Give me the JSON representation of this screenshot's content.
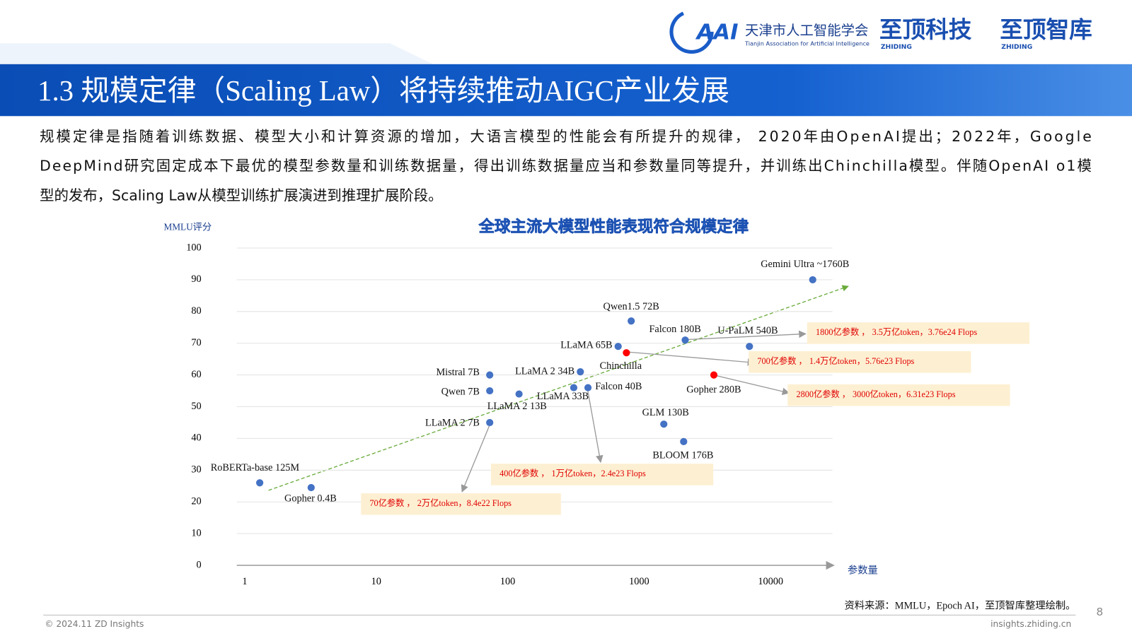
{
  "header": {
    "org_name": "天津市人工智能学会",
    "org_name_en": "Tianjin Association for Artificial Intelligence",
    "brand1": "至顶科技",
    "brand1_en": "ZHIDING",
    "brand2": "至顶智库",
    "brand2_en": "ZHIDING"
  },
  "slide_title": "1.3 规模定律（Scaling Law）将持续推动AIGC产业发展",
  "paragraph": [
    "规模定律是指随着训练数据、模型大小和计算资源的增加，大语言模型的性能会有所提升的规律， 2020年由OpenAI提出；2022年，Google",
    "DeepMind研究固定成本下最优的模型参数量和训练数据量，得出训练数据量应当和参数量同等提升，并训练出Chinchilla模型。伴随OpenAI o1模",
    "型的发布，Scaling Law从模型训练扩展演进到推理扩展阶段。"
  ],
  "chart_data": {
    "type": "scatter",
    "title": "全球主流大模型性能表现符合规模定律",
    "y_label": "MMLU评分",
    "x_label": "参数量",
    "x_log": true,
    "grid": true,
    "xlim": [
      0.87,
      29500
    ],
    "xticks": [
      1,
      10,
      100,
      1000,
      10000
    ],
    "ylim": [
      0,
      100
    ],
    "yticks": [
      0,
      10,
      20,
      30,
      40,
      50,
      60,
      70,
      80,
      90,
      100
    ],
    "point_labels": [
      "RoBERTa-base 125M",
      "Gopher 0.4B",
      "LLaMA 2 7B",
      "Qwen 7B",
      "Mistral 7B",
      "LLaMA 2 13B",
      "LLaMA 2 34B",
      "LLaMA 33B",
      "Falcon 40B",
      "LLaMA 65B",
      "Qwen1.5 72B",
      "Falcon 180B",
      "U-PaLM 540B",
      "GLM 130B",
      "BLOOM 176B",
      "Gemini Ultra ~1760B",
      "Chinchilla",
      "Gopher 280B"
    ],
    "x": [
      1.3,
      3.2,
      73,
      73,
      73,
      122,
      357,
      318,
      408,
      692,
      870,
      2240,
      6900,
      1540,
      2180,
      20900,
      800,
      3700
    ],
    "y": [
      26,
      24.5,
      45,
      55,
      60,
      54,
      61,
      56,
      56,
      69,
      77,
      71,
      69,
      44.5,
      39,
      90,
      67,
      60
    ],
    "point_colors": [
      "#4472c4",
      "#4472c4",
      "#4472c4",
      "#4472c4",
      "#4472c4",
      "#4472c4",
      "#4472c4",
      "#4472c4",
      "#4472c4",
      "#4472c4",
      "#4472c4",
      "#4472c4",
      "#4472c4",
      "#4472c4",
      "#4472c4",
      "#4472c4",
      "#ff0000",
      "#ff0000"
    ],
    "annotations": [
      "1800亿参数 ， 3.5万亿token，3.76e24 Flops",
      "700亿参数 ， 1.4万亿token，5.76e23 Flops",
      "2800亿参数 ， 3000亿token，6.31e23 Flops",
      "400亿参数 ， 1万亿token，2.4e23 Flops",
      "70亿参数 ， 2万亿token，8.4e22 Flops"
    ]
  },
  "source": "资料来源：MMLU，Epoch AI，至顶智库整理绘制。",
  "footer": {
    "copyright": "© 2024.11 ZD Insights",
    "site": "insights.zhiding.cn",
    "page": "8"
  }
}
